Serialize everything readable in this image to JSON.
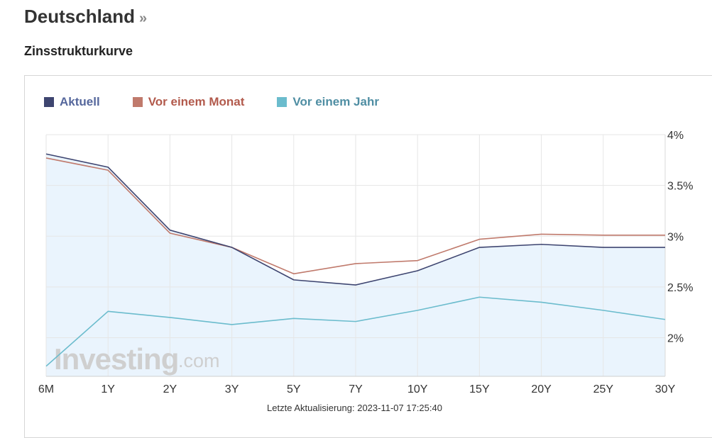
{
  "header": {
    "title": "Deutschland",
    "title_suffix": "»",
    "subtitle": "Zinsstrukturkurve"
  },
  "footer": {
    "last_update": "Letzte Aktualisierung: 2023-11-07 17:25:40"
  },
  "watermark": {
    "brand": "Investing",
    "suffix": ".com"
  },
  "colors": {
    "aktuell": "#3e4570",
    "vor_einem_monat": "#c07a6c",
    "vor_einem_jahr": "#6bbccd",
    "area_fill": "#eaf4fd",
    "grid": "#e6e6e6"
  },
  "chart_data": {
    "type": "line",
    "categories": [
      "6M",
      "1Y",
      "2Y",
      "3Y",
      "5Y",
      "7Y",
      "10Y",
      "15Y",
      "20Y",
      "25Y",
      "30Y"
    ],
    "series": [
      {
        "name": "Aktuell",
        "values": [
          3.81,
          3.68,
          3.06,
          2.89,
          2.57,
          2.52,
          2.66,
          2.89,
          2.92,
          2.89,
          2.89
        ]
      },
      {
        "name": "Vor einem Monat",
        "values": [
          3.77,
          3.65,
          3.03,
          2.89,
          2.63,
          2.73,
          2.76,
          2.97,
          3.02,
          3.01,
          3.01
        ]
      },
      {
        "name": "Vor einem Jahr",
        "values": [
          1.72,
          2.26,
          2.2,
          2.13,
          2.19,
          2.16,
          2.27,
          2.4,
          2.35,
          2.27,
          2.18
        ]
      }
    ],
    "y_ticks": [
      "4%",
      "3.5%",
      "3%",
      "2.5%",
      "2%"
    ],
    "y_tick_values": [
      4,
      3.5,
      3,
      2.5,
      2
    ],
    "ylim": [
      1.62,
      4.0
    ],
    "grid": true,
    "legend_position": "top-left",
    "area_fill_series": "Aktuell"
  }
}
